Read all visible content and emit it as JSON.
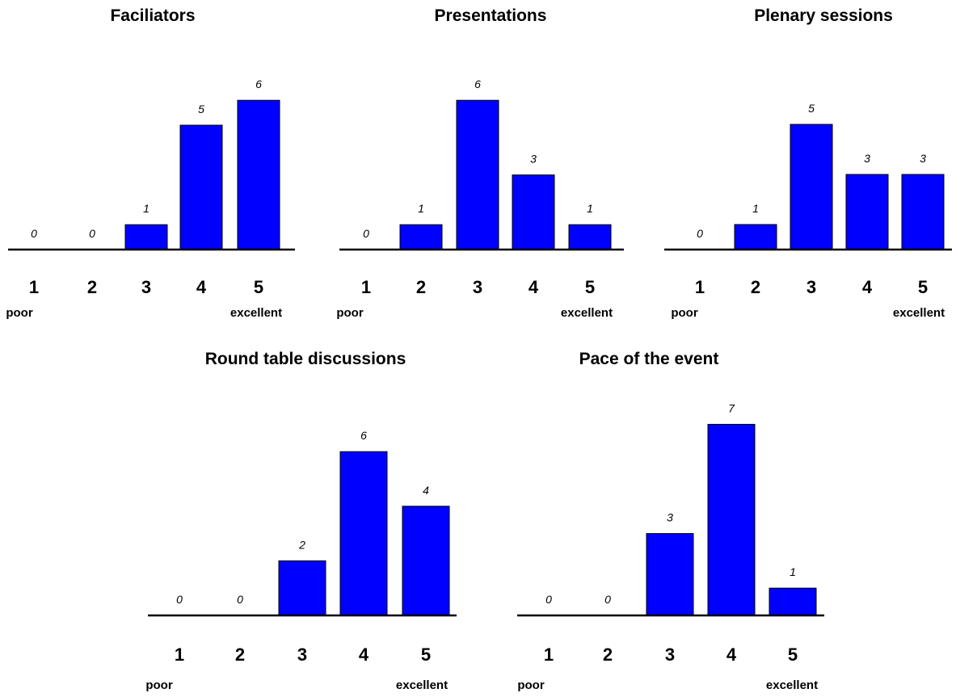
{
  "bar_color": "#0000ff",
  "chart_data": [
    {
      "type": "bar",
      "title": "Faciliators",
      "categories": [
        "1",
        "2",
        "3",
        "4",
        "5"
      ],
      "values": [
        0,
        0,
        1,
        5,
        6
      ],
      "scale_low_label": "poor",
      "scale_high_label": "excellent",
      "ylim": [
        0,
        6
      ]
    },
    {
      "type": "bar",
      "title": "Presentations",
      "categories": [
        "1",
        "2",
        "3",
        "4",
        "5"
      ],
      "values": [
        0,
        1,
        6,
        3,
        1
      ],
      "scale_low_label": "poor",
      "scale_high_label": "excellent",
      "ylim": [
        0,
        6
      ]
    },
    {
      "type": "bar",
      "title": "Plenary sessions",
      "categories": [
        "1",
        "2",
        "3",
        "4",
        "5"
      ],
      "values": [
        0,
        1,
        5,
        3,
        3
      ],
      "scale_low_label": "poor",
      "scale_high_label": "excellent",
      "ylim": [
        0,
        5
      ]
    },
    {
      "type": "bar",
      "title": "Round table discussions",
      "categories": [
        "1",
        "2",
        "3",
        "4",
        "5"
      ],
      "values": [
        0,
        0,
        2,
        6,
        4
      ],
      "scale_low_label": "poor",
      "scale_high_label": "excellent",
      "ylim": [
        0,
        6
      ]
    },
    {
      "type": "bar",
      "title": "Pace of the event",
      "categories": [
        "1",
        "2",
        "3",
        "4",
        "5"
      ],
      "values": [
        0,
        0,
        3,
        7,
        1
      ],
      "scale_low_label": "poor",
      "scale_high_label": "excellent",
      "ylim": [
        0,
        7
      ]
    }
  ]
}
